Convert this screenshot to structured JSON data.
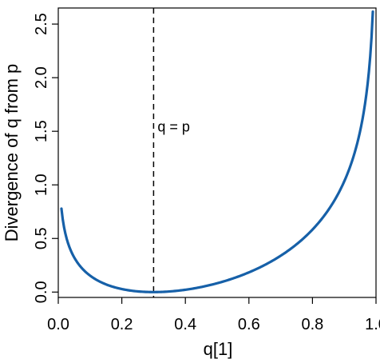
{
  "chart_data": {
    "type": "line",
    "xlabel": "q[1]",
    "ylabel": "Divergence of q from p",
    "xlim": [
      0.0,
      1.0
    ],
    "ylim": [
      -0.05,
      2.65
    ],
    "x_ticks": [
      "0.0",
      "0.2",
      "0.4",
      "0.6",
      "0.8",
      "1.0"
    ],
    "y_ticks": [
      "0.0",
      "0.5",
      "1.0",
      "1.5",
      "2.0",
      "2.5"
    ],
    "x_tick_values": [
      0.0,
      0.2,
      0.4,
      0.6,
      0.8,
      1.0
    ],
    "y_tick_values": [
      0.0,
      0.5,
      1.0,
      1.5,
      2.0,
      2.5
    ],
    "grid": false,
    "series": [
      {
        "color": "#1660a8",
        "p": 0.3,
        "x_range": [
          0.01,
          0.99
        ]
      }
    ],
    "annotations": [
      {
        "type": "vline",
        "x": 0.3,
        "style": "dashed",
        "color": "#000000"
      },
      {
        "type": "text",
        "text": "q = p",
        "x": 0.3,
        "y": 1.55
      }
    ]
  }
}
